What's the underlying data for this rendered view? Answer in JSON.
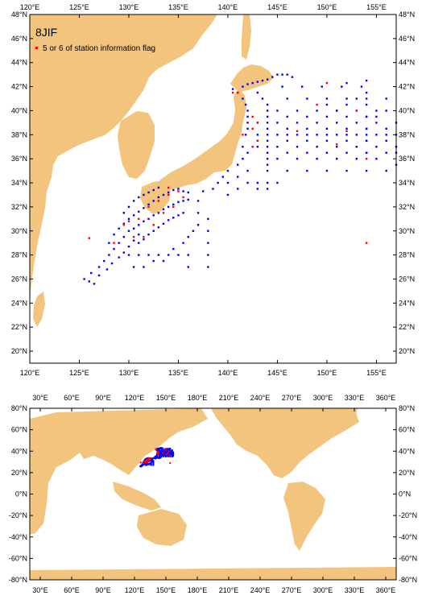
{
  "colors": {
    "land": "#f2c47e",
    "ocean": "#ffffff",
    "station": "#0000ff",
    "flagged": "#ff0000",
    "frame": "#000000"
  },
  "top_map": {
    "title": "8JIF",
    "legend_label": "5 or 6 of station information flag",
    "lon_ticks": [
      "120°E",
      "125°E",
      "130°E",
      "135°E",
      "140°E",
      "145°E",
      "150°E",
      "155°E"
    ],
    "lat_ticks": [
      "20°N",
      "22°N",
      "24°N",
      "26°N",
      "28°N",
      "30°N",
      "32°N",
      "34°N",
      "36°N",
      "38°N",
      "40°N",
      "42°N",
      "44°N",
      "46°N",
      "48°N"
    ]
  },
  "bottom_map": {
    "lon_ticks": [
      "30°E",
      "60°E",
      "90°E",
      "120°E",
      "150°E",
      "180°E",
      "210°E",
      "240°E",
      "270°E",
      "300°E",
      "330°E",
      "360°E"
    ],
    "lat_ticks": [
      "-80°N",
      "-60°N",
      "-40°N",
      "-20°N",
      "0°N",
      "20°N",
      "40°N",
      "60°N",
      "80°N"
    ]
  },
  "chart_data": {
    "type": "scatter",
    "title": "8JIF",
    "xlim": [
      120,
      157
    ],
    "ylim": [
      19,
      48
    ],
    "global_xlim": [
      20,
      370
    ],
    "global_ylim": [
      -80,
      80
    ],
    "series": [
      {
        "name": "",
        "points": [
          [
            125.5,
            26
          ],
          [
            126,
            25.8
          ],
          [
            126.5,
            25.6
          ],
          [
            126.2,
            26.5
          ],
          [
            127,
            27
          ],
          [
            127.5,
            27.5
          ],
          [
            128,
            28
          ],
          [
            128.5,
            28.5
          ],
          [
            129,
            29
          ],
          [
            129.5,
            29.5
          ],
          [
            127,
            26.3
          ],
          [
            127.8,
            26.8
          ],
          [
            128.3,
            27.3
          ],
          [
            129,
            27.8
          ],
          [
            129.5,
            28.2
          ],
          [
            130,
            28.7
          ],
          [
            130.5,
            29.2
          ],
          [
            131,
            29.7
          ],
          [
            128,
            29
          ],
          [
            128.5,
            29.7
          ],
          [
            129,
            30.2
          ],
          [
            129.5,
            30.6
          ],
          [
            130,
            31
          ],
          [
            130.5,
            31.3
          ],
          [
            131,
            31.6
          ],
          [
            131.5,
            31.9
          ],
          [
            132,
            32.2
          ],
          [
            132.5,
            32.5
          ],
          [
            133,
            32.8
          ],
          [
            133.5,
            33
          ],
          [
            134,
            33.2
          ],
          [
            134.5,
            33.4
          ],
          [
            135,
            33.5
          ],
          [
            135.5,
            33.3
          ],
          [
            136,
            33.2
          ],
          [
            130,
            30
          ],
          [
            130.5,
            30.2
          ],
          [
            131,
            30.5
          ],
          [
            131.5,
            30.8
          ],
          [
            132,
            31
          ],
          [
            132.5,
            31.3
          ],
          [
            133,
            31.5
          ],
          [
            133.5,
            31.8
          ],
          [
            134,
            32
          ],
          [
            134.5,
            32.2
          ],
          [
            135,
            32.4
          ],
          [
            135.5,
            32.5
          ],
          [
            136,
            32.6
          ],
          [
            129.5,
            31.5
          ],
          [
            130,
            32
          ],
          [
            130.5,
            32.5
          ],
          [
            131,
            32.8
          ],
          [
            131.5,
            33
          ],
          [
            132,
            33.2
          ],
          [
            132.5,
            33.4
          ],
          [
            133,
            33.6
          ],
          [
            131,
            29
          ],
          [
            131.5,
            29.3
          ],
          [
            132,
            29.7
          ],
          [
            132.5,
            30
          ],
          [
            133,
            30.3
          ],
          [
            133.5,
            30.6
          ],
          [
            134,
            30.9
          ],
          [
            134.5,
            31.1
          ],
          [
            135,
            31.3
          ],
          [
            135.5,
            31.5
          ],
          [
            130,
            28
          ],
          [
            131,
            28
          ],
          [
            132,
            28
          ],
          [
            133,
            28
          ],
          [
            134,
            28
          ],
          [
            135,
            28
          ],
          [
            130.5,
            27
          ],
          [
            131.5,
            27
          ],
          [
            132.5,
            27.5
          ],
          [
            133.5,
            27.5
          ],
          [
            134.5,
            28.5
          ],
          [
            135.5,
            29
          ],
          [
            136,
            29.5
          ],
          [
            136.5,
            30
          ],
          [
            137,
            30.5
          ],
          [
            137,
            31.5
          ],
          [
            137,
            32.5
          ],
          [
            138,
            31
          ],
          [
            138,
            30
          ],
          [
            138,
            29
          ],
          [
            138,
            28
          ],
          [
            138,
            27
          ],
          [
            136,
            28
          ],
          [
            136,
            27
          ],
          [
            137.5,
            33.3
          ],
          [
            138.5,
            33.5
          ],
          [
            139,
            34
          ],
          [
            139.5,
            34.5
          ],
          [
            140,
            35
          ],
          [
            140,
            34
          ],
          [
            140,
            33
          ],
          [
            141,
            35.5
          ],
          [
            141,
            34.5
          ],
          [
            141,
            33.5
          ],
          [
            142,
            35
          ],
          [
            142,
            34
          ],
          [
            141.5,
            36
          ],
          [
            142,
            36.5
          ],
          [
            142.5,
            37
          ],
          [
            143,
            37.5
          ],
          [
            141.5,
            37
          ],
          [
            141.8,
            38
          ],
          [
            142,
            38.5
          ],
          [
            142,
            39
          ],
          [
            142,
            39.5
          ],
          [
            142,
            40
          ],
          [
            141.8,
            40.5
          ],
          [
            141.5,
            41
          ],
          [
            141,
            41.5
          ],
          [
            140.5,
            41.8
          ],
          [
            141.5,
            42
          ],
          [
            142,
            42.2
          ],
          [
            142.5,
            42.3
          ],
          [
            143,
            42.4
          ],
          [
            143.5,
            42.5
          ],
          [
            144,
            42.6
          ],
          [
            144.5,
            42.8
          ],
          [
            145,
            43
          ],
          [
            145.5,
            43
          ],
          [
            146,
            43
          ],
          [
            146.5,
            42.8
          ],
          [
            143,
            41.5
          ],
          [
            143.5,
            41
          ],
          [
            144,
            40.5
          ],
          [
            144,
            40
          ],
          [
            144,
            39.5
          ],
          [
            144,
            39
          ],
          [
            144,
            38.5
          ],
          [
            144,
            38
          ],
          [
            144,
            37.5
          ],
          [
            144,
            37
          ],
          [
            144,
            36.5
          ],
          [
            144,
            36
          ],
          [
            144,
            35.5
          ],
          [
            144,
            35
          ],
          [
            143,
            38
          ],
          [
            145,
            38
          ],
          [
            146,
            38
          ],
          [
            147,
            38
          ],
          [
            148,
            38
          ],
          [
            149,
            38
          ],
          [
            150,
            38
          ],
          [
            151,
            38
          ],
          [
            152,
            38
          ],
          [
            153,
            38
          ],
          [
            154,
            38
          ],
          [
            155,
            38
          ],
          [
            156,
            38
          ],
          [
            157,
            38
          ],
          [
            143,
            39
          ],
          [
            145,
            39
          ],
          [
            147,
            39
          ],
          [
            149,
            39
          ],
          [
            151,
            39
          ],
          [
            153,
            39
          ],
          [
            155,
            39
          ],
          [
            157,
            39
          ],
          [
            143,
            37
          ],
          [
            145,
            37
          ],
          [
            147,
            37
          ],
          [
            149,
            37
          ],
          [
            151,
            37
          ],
          [
            153,
            37
          ],
          [
            155,
            37
          ],
          [
            157,
            37
          ],
          [
            145,
            36
          ],
          [
            147,
            36
          ],
          [
            149,
            36
          ],
          [
            151,
            36
          ],
          [
            153,
            36
          ],
          [
            155,
            36
          ],
          [
            145,
            40
          ],
          [
            147,
            40
          ],
          [
            149,
            40
          ],
          [
            151,
            40
          ],
          [
            153,
            40
          ],
          [
            155,
            40
          ],
          [
            146,
            41
          ],
          [
            148,
            41
          ],
          [
            150,
            41
          ],
          [
            152,
            41
          ],
          [
            154,
            41
          ],
          [
            156,
            41
          ],
          [
            146,
            35
          ],
          [
            148,
            35
          ],
          [
            150,
            35
          ],
          [
            152,
            35
          ],
          [
            154,
            35
          ],
          [
            156,
            35
          ],
          [
            145.5,
            42
          ],
          [
            147.5,
            42
          ],
          [
            149.5,
            42
          ],
          [
            151.5,
            42
          ],
          [
            153.5,
            42
          ],
          [
            146,
            39.5
          ],
          [
            148,
            39.5
          ],
          [
            150,
            39.5
          ],
          [
            152,
            39.5
          ],
          [
            154,
            39.5
          ],
          [
            146,
            38.5
          ],
          [
            148,
            38.5
          ],
          [
            150,
            38.5
          ],
          [
            152,
            38.5
          ],
          [
            154,
            38.5
          ],
          [
            156,
            38.5
          ],
          [
            146,
            37.5
          ],
          [
            148,
            37.5
          ],
          [
            150,
            37.5
          ],
          [
            152,
            37.5
          ],
          [
            154,
            37.5
          ],
          [
            156,
            37.5
          ],
          [
            146,
            36.5
          ],
          [
            148,
            36.5
          ],
          [
            150,
            36.5
          ],
          [
            152,
            36.5
          ],
          [
            154,
            36.5
          ],
          [
            156,
            36.5
          ],
          [
            143,
            34
          ],
          [
            144,
            34
          ],
          [
            145,
            34
          ],
          [
            143,
            33.5
          ],
          [
            144,
            33.5
          ],
          [
            152,
            42.3
          ],
          [
            154,
            42.5
          ],
          [
            154,
            41.5
          ],
          [
            154,
            40.5
          ],
          [
            154,
            39.5
          ],
          [
            154,
            38.5
          ],
          [
            154,
            37.5
          ],
          [
            154,
            36.5
          ],
          [
            157,
            35.5
          ],
          [
            157,
            36.5
          ],
          [
            150,
            40.5
          ],
          [
            151,
            40
          ],
          [
            152,
            40.5
          ],
          [
            153,
            41
          ],
          [
            155,
            39.5
          ],
          [
            156,
            40
          ]
        ]
      },
      {
        "name": "5 or 6 of station information flag",
        "points": [
          [
            141,
            41.5
          ],
          [
            140.5,
            41.5
          ],
          [
            142.5,
            39.5
          ],
          [
            143,
            39
          ],
          [
            142.5,
            38.5
          ],
          [
            143,
            37.5
          ],
          [
            142.5,
            37
          ],
          [
            141.5,
            38
          ],
          [
            132,
            32
          ],
          [
            133,
            32.5
          ],
          [
            134,
            33
          ],
          [
            135,
            33.3
          ],
          [
            133.5,
            31.5
          ],
          [
            134.5,
            32
          ],
          [
            135.5,
            32.8
          ],
          [
            131,
            31
          ],
          [
            132.5,
            30.5
          ],
          [
            130.5,
            29.5
          ],
          [
            129.5,
            30.5
          ],
          [
            128.5,
            29
          ],
          [
            131.5,
            29.5
          ],
          [
            130,
            30.8
          ],
          [
            126,
            29.4
          ],
          [
            134,
            33.6
          ],
          [
            150,
            42.3
          ],
          [
            152,
            38.3
          ],
          [
            153,
            40
          ],
          [
            154,
            36
          ],
          [
            154,
            29
          ],
          [
            151,
            37.2
          ],
          [
            147,
            38.3
          ],
          [
            149,
            40.5
          ]
        ]
      }
    ]
  }
}
